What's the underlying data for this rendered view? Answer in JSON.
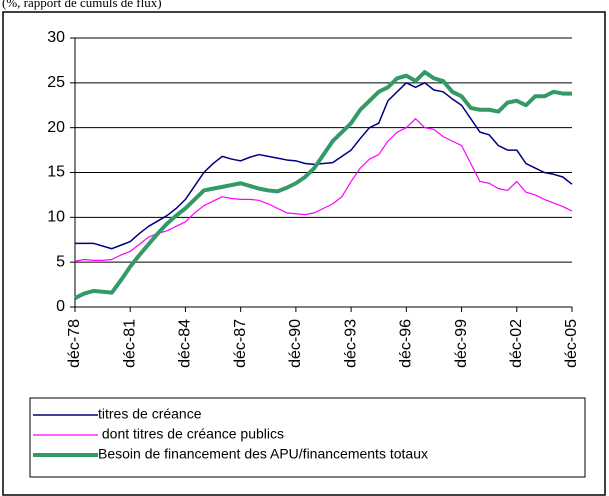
{
  "chart_data": {
    "type": "line",
    "title": "(%, rapport de cumuls de flux)",
    "categories": [
      "déc-78",
      null,
      null,
      null,
      null,
      null,
      "déc-81",
      null,
      null,
      null,
      null,
      null,
      "déc-84",
      null,
      null,
      null,
      null,
      null,
      "déc-87",
      null,
      null,
      null,
      null,
      null,
      "déc-90",
      null,
      null,
      null,
      null,
      null,
      "déc-93",
      null,
      null,
      null,
      null,
      null,
      "déc-96",
      null,
      null,
      null,
      null,
      null,
      "déc-99",
      null,
      null,
      null,
      null,
      null,
      "déc-02",
      null,
      null,
      null,
      null,
      null,
      "déc-05"
    ],
    "series": [
      {
        "name": "titres de créance",
        "color": "#000080",
        "width": 1.5,
        "values": [
          7.1,
          7.1,
          7.1,
          6.8,
          6.5,
          6.9,
          7.3,
          8.2,
          9.0,
          9.6,
          10.2,
          11.0,
          12.0,
          13.5,
          15.0,
          16.0,
          16.8,
          16.5,
          16.3,
          16.7,
          17.0,
          16.8,
          16.6,
          16.4,
          16.3,
          16.0,
          15.9,
          16.0,
          16.1,
          16.8,
          17.5,
          18.8,
          20.0,
          20.5,
          23.0,
          24.0,
          25.0,
          24.5,
          25.0,
          24.2,
          24.0,
          23.2,
          22.5,
          21.0,
          19.5,
          19.2,
          18.0,
          17.5,
          17.5,
          16.0,
          15.5,
          15.0,
          14.8,
          14.5,
          13.7
        ]
      },
      {
        "name": " dont titres de créance publics",
        "color": "#ff00ff",
        "width": 1.2,
        "values": [
          5.1,
          5.3,
          5.2,
          5.2,
          5.3,
          5.8,
          6.2,
          7.0,
          7.8,
          8.2,
          8.5,
          9.0,
          9.5,
          10.5,
          11.3,
          11.8,
          12.3,
          12.1,
          12.0,
          12.0,
          11.9,
          11.5,
          11.0,
          10.5,
          10.4,
          10.3,
          10.5,
          11.0,
          11.5,
          12.3,
          14.0,
          15.5,
          16.5,
          17.0,
          18.5,
          19.5,
          20.0,
          21.0,
          20.0,
          19.8,
          19.0,
          18.5,
          18.0,
          16.0,
          14.0,
          13.8,
          13.2,
          13.0,
          14.0,
          12.8,
          12.5,
          12.0,
          11.6,
          11.2,
          10.7
        ]
      },
      {
        "name": "Besoin de financement des APU/financements totaux",
        "color": "#339966",
        "width": 4,
        "values": [
          1.0,
          1.5,
          1.8,
          1.7,
          1.6,
          3.0,
          4.5,
          5.8,
          7.0,
          8.2,
          9.3,
          10.2,
          11.0,
          12.0,
          13.0,
          13.2,
          13.4,
          13.6,
          13.8,
          13.5,
          13.2,
          13.0,
          12.9,
          13.3,
          13.8,
          14.5,
          15.5,
          17.0,
          18.5,
          19.5,
          20.5,
          22.0,
          23.0,
          24.0,
          24.5,
          25.5,
          25.8,
          25.2,
          26.2,
          25.5,
          25.2,
          24.0,
          23.5,
          22.2,
          22.0,
          22.0,
          21.8,
          22.8,
          23.0,
          22.5,
          23.5,
          23.5,
          24.0,
          23.8,
          23.8
        ]
      }
    ],
    "ylim": [
      0,
      30
    ],
    "yticks": [
      0,
      5,
      10,
      15,
      20,
      25,
      30
    ],
    "grid": true
  }
}
